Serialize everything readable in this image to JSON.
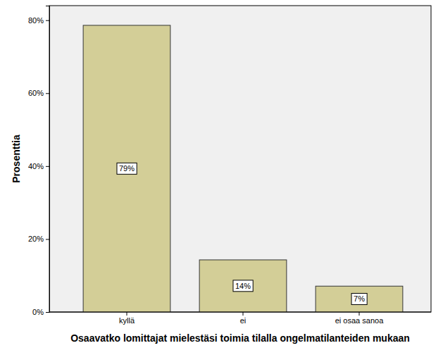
{
  "chart_data": {
    "type": "bar",
    "x_label": "Osaavatko lomittajat mielestäsi toimia tilalla ongelmatilanteiden mukaan",
    "y_label": "Prosenttia",
    "categories": [
      "kyllä",
      "ei",
      "ei osaa sanoa"
    ],
    "values": [
      78.6,
      14.3,
      7.1
    ],
    "value_labels": [
      "79%",
      "14%",
      "7%"
    ],
    "data_labels": true,
    "color": "#d3ce97",
    "ylim": [
      0,
      84
    ],
    "yticks": [
      {
        "value": 0,
        "label": "0%"
      },
      {
        "value": 20,
        "label": "20%"
      },
      {
        "value": 40,
        "label": "40%"
      },
      {
        "value": 60,
        "label": "60%"
      },
      {
        "value": 80,
        "label": "80%"
      }
    ],
    "grid": false
  }
}
